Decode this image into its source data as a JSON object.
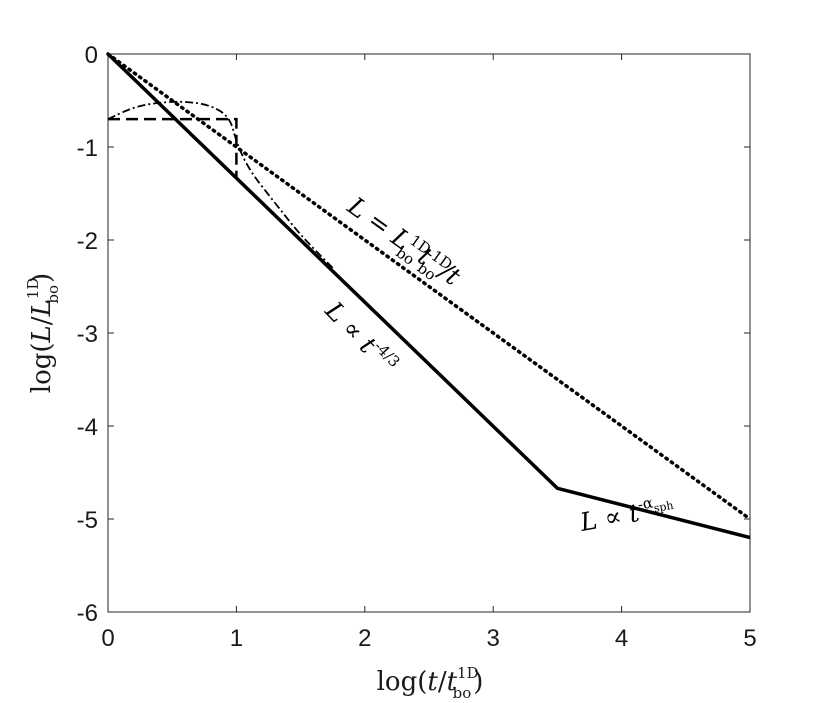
{
  "chart_data": {
    "type": "line",
    "xlabel": "log(t/t_bo^1D)",
    "ylabel": "log(L/L_bo^1D)",
    "xlim": [
      0,
      5
    ],
    "ylim": [
      -6,
      0
    ],
    "x_ticks": [
      "0",
      "1",
      "2",
      "3",
      "4",
      "5"
    ],
    "y_ticks": [
      "0",
      "-1",
      "-2",
      "-3",
      "-4",
      "-5",
      "-6"
    ],
    "grid": false,
    "series": [
      {
        "style": "solid",
        "x": [
          0,
          3.5,
          5
        ],
        "y": [
          0,
          -4.67,
          -5.2
        ]
      },
      {
        "style": "dotted",
        "x": [
          0,
          5
        ],
        "y": [
          0,
          -5
        ]
      },
      {
        "style": "dashed",
        "x": [
          0,
          1,
          1
        ],
        "y": [
          -0.7,
          -0.7,
          -1.33
        ]
      },
      {
        "style": "dashdot",
        "x": [
          0,
          0.2,
          0.4,
          0.6,
          0.8,
          0.95,
          1.0,
          1.1,
          1.3,
          1.5,
          1.75
        ],
        "y": [
          -0.7,
          -0.57,
          -0.52,
          -0.51,
          -0.55,
          -0.68,
          -0.95,
          -1.25,
          -1.6,
          -1.95,
          -2.3
        ]
      }
    ],
    "annotations": [
      {
        "id": "dotted",
        "text": "L = L_bo^1D t_bo^1D / t"
      },
      {
        "id": "solid-early",
        "text": "L ∝ t^-4/3"
      },
      {
        "id": "solid-late",
        "text": "L ∝ t^-α_sph"
      }
    ]
  },
  "labels": {
    "x_main": "log(",
    "x_var": "t",
    "x_slash": "/",
    "x_t": "t",
    "x_sup": "1D",
    "x_sub": "bo",
    "x_close": ")",
    "y_main": "log(",
    "y_var": "L",
    "y_slash": "/",
    "y_L": "L",
    "y_sup": "1D",
    "y_sub": "bo",
    "y_close": ")",
    "ann1_L": "L",
    "ann1_eq": " = ",
    "ann1_L2": "L",
    "ann1_sup": "1D",
    "ann1_sub": "bo",
    "ann1_t": "t",
    "ann1_sup2": "1D",
    "ann1_sub2": "bo",
    "ann1_tail": "/t",
    "ann2_L": "L",
    "ann2_prop": " ∝ t",
    "ann2_exp": "-4/3",
    "ann3_L": "L",
    "ann3_prop": " ∝ t",
    "ann3_exp": "-α",
    "ann3_sub": "sph"
  }
}
